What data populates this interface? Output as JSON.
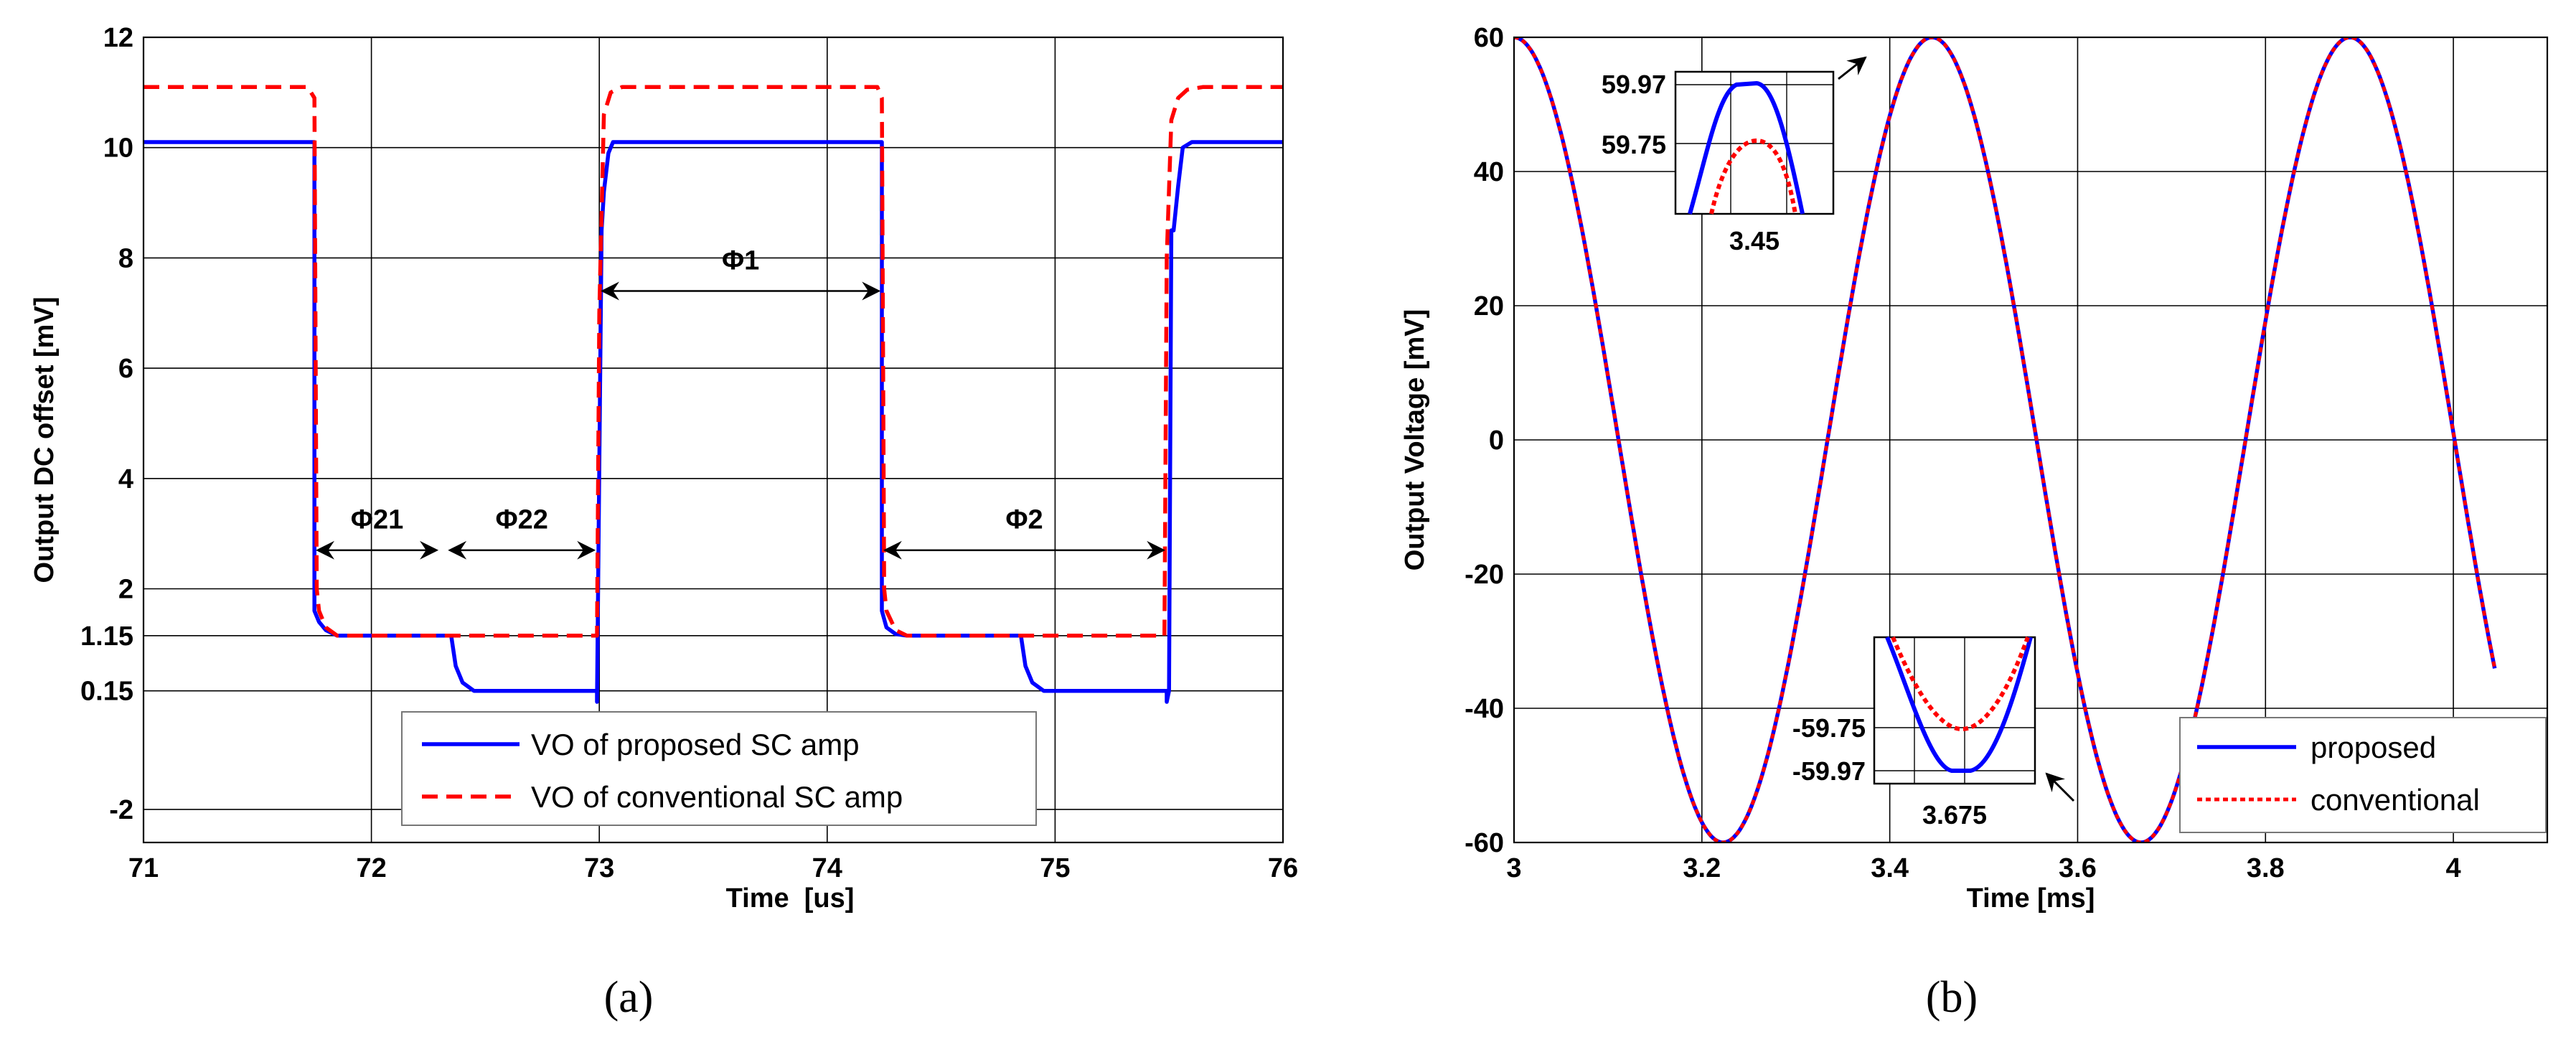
{
  "figure": {
    "caption_a": "(a)",
    "caption_b": "(b)"
  },
  "chart_data": [
    {
      "id": "a",
      "type": "line",
      "title": "",
      "xlabel": "Time  [us]",
      "ylabel": "Output DC offset [mV]",
      "xlim": [
        71,
        76
      ],
      "ylim": [
        -2.6,
        12
      ],
      "x_ticks": [
        71,
        72,
        73,
        74,
        75,
        76
      ],
      "y_ticks": [
        -2,
        0.15,
        1.15,
        2,
        4,
        6,
        8,
        10,
        12
      ],
      "y_tick_labels": [
        "-2",
        "0.15",
        "1.15",
        "2",
        "4",
        "6",
        "8",
        "10",
        "12"
      ],
      "grid": true,
      "legend_position": "bottom-center",
      "series": [
        {
          "name": "VO of proposed SC amp",
          "color": "#0000FF",
          "style": "solid",
          "x": [
            71.0,
            71.75,
            71.75,
            71.77,
            71.8,
            71.85,
            72.0,
            72.35,
            72.37,
            72.4,
            72.45,
            72.6,
            72.99,
            72.99,
            73.01,
            73.01,
            73.02,
            73.04,
            73.06,
            73.1,
            74.24,
            74.24,
            74.26,
            74.3,
            74.35,
            74.5,
            74.85,
            74.87,
            74.9,
            74.95,
            75.2,
            75.49,
            75.49,
            75.5,
            75.51,
            75.52,
            75.54,
            75.56,
            75.6,
            76.0
          ],
          "y": [
            10.1,
            10.1,
            1.6,
            1.4,
            1.25,
            1.15,
            1.15,
            1.15,
            0.6,
            0.3,
            0.15,
            0.15,
            0.15,
            -0.05,
            8.5,
            8.5,
            9.2,
            9.9,
            10.1,
            10.1,
            10.1,
            1.6,
            1.3,
            1.18,
            1.15,
            1.15,
            1.15,
            0.6,
            0.3,
            0.15,
            0.15,
            0.15,
            -0.05,
            0.15,
            8.5,
            8.5,
            9.3,
            10.0,
            10.1,
            10.1
          ]
        },
        {
          "name": "VO of conventional SC amp",
          "color": "#FF0000",
          "style": "dashed",
          "x": [
            71.0,
            71.72,
            71.75,
            71.76,
            71.77,
            71.8,
            71.85,
            72.0,
            72.99,
            73.0,
            73.02,
            73.05,
            73.1,
            73.2,
            74.22,
            74.24,
            74.25,
            74.26,
            74.3,
            74.35,
            74.5,
            75.48,
            75.49,
            75.51,
            75.54,
            75.58,
            75.65,
            76.0
          ],
          "y": [
            11.1,
            11.1,
            10.9,
            2.0,
            1.6,
            1.3,
            1.15,
            1.15,
            1.15,
            7.0,
            10.6,
            11.0,
            11.1,
            11.1,
            11.1,
            10.9,
            2.0,
            1.6,
            1.25,
            1.15,
            1.15,
            1.15,
            8.0,
            10.5,
            10.9,
            11.05,
            11.1,
            11.1
          ]
        }
      ],
      "annotations": [
        {
          "label": "Φ1",
          "x_from": 73.0,
          "x_to": 74.24,
          "y": 7.4
        },
        {
          "label": "Φ21",
          "x_from": 71.75,
          "x_to": 72.3,
          "y": 2.7
        },
        {
          "label": "Φ22",
          "x_from": 72.33,
          "x_to": 72.99,
          "y": 2.7
        },
        {
          "label": "Φ2",
          "x_from": 74.24,
          "x_to": 75.49,
          "y": 2.7
        }
      ]
    },
    {
      "id": "b",
      "type": "line",
      "title": "",
      "xlabel": "Time [ms]",
      "ylabel": "Output Voltage [mV]",
      "xlim": [
        3.0,
        4.1
      ],
      "ylim": [
        -60,
        60
      ],
      "x_ticks": [
        3,
        3.2,
        3.4,
        3.6,
        3.8,
        4
      ],
      "x_tick_labels": [
        "3",
        "3.2",
        "3.4",
        "3.6",
        "3.8",
        "4"
      ],
      "y_ticks": [
        -60,
        -40,
        -20,
        0,
        20,
        40,
        60
      ],
      "grid": true,
      "legend_position": "bottom-right",
      "signal": {
        "amplitude": 60,
        "period_ms": 0.445,
        "peak_at_ms": 3.0,
        "end_ms": 4.045
      },
      "series": [
        {
          "name": "proposed",
          "color": "#0000FF",
          "style": "solid"
        },
        {
          "name": "conventional",
          "color": "#FF0000",
          "style": "dotted"
        }
      ],
      "insets": [
        {
          "position": "top-left",
          "y_tick_labels": [
            "59.97",
            "59.75"
          ],
          "x_tick_label": "3.45",
          "proposed_peak": 59.97,
          "conventional_peak": 59.75
        },
        {
          "position": "bottom-center",
          "y_tick_labels": [
            "-59.75",
            "-59.97"
          ],
          "x_tick_label": "3.675",
          "proposed_peak": -59.97,
          "conventional_peak": -59.75
        }
      ]
    }
  ]
}
